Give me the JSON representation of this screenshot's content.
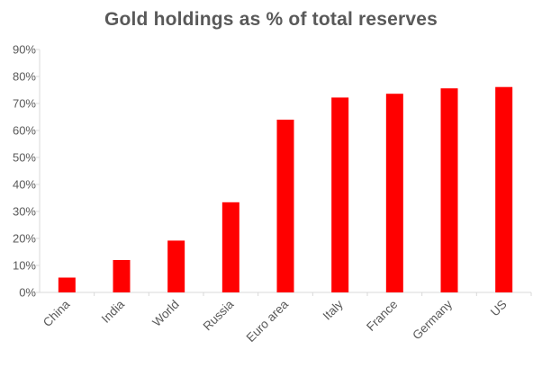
{
  "chart_data": {
    "type": "bar",
    "title": "Gold holdings as % of total reserves",
    "xlabel": "",
    "ylabel": "",
    "categories": [
      "China",
      "India",
      "World",
      "Russia",
      "Euro area",
      "Italy",
      "France",
      "Germany",
      "US"
    ],
    "values": [
      5.5,
      12.0,
      19.2,
      33.4,
      64.0,
      72.2,
      73.6,
      75.6,
      76.1
    ],
    "ylim": [
      0,
      90
    ],
    "yticks": [
      0,
      10,
      20,
      30,
      40,
      50,
      60,
      70,
      80,
      90
    ],
    "ytick_labels": [
      "0%",
      "10%",
      "20%",
      "30%",
      "40%",
      "50%",
      "60%",
      "70%",
      "80%",
      "90%"
    ],
    "grid": false,
    "bar_color": "#ff0000",
    "axis_color": "#d9d9d9",
    "text_color": "#595959"
  }
}
